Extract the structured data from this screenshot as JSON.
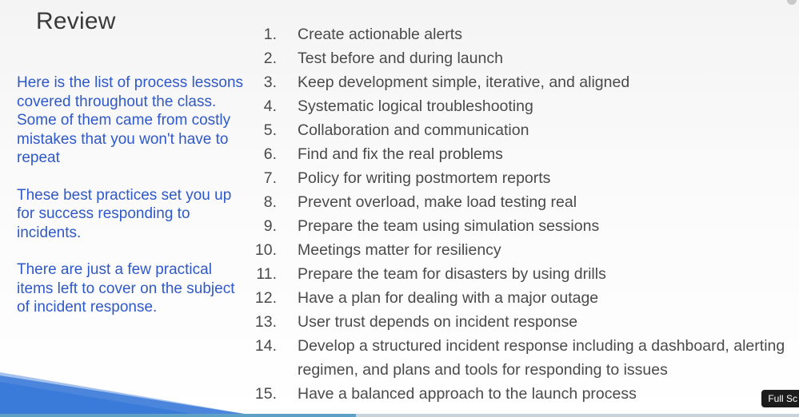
{
  "slide": {
    "title": "Review",
    "left_paragraphs": [
      "Here is the list of process lessons covered throughout the class. Some of them came from costly mistakes that you won't have to repeat",
      "These best practices set you up for success responding to incidents.",
      "There are just a few practical items left to cover on the subject of incident response."
    ],
    "list": [
      {
        "num": "1.",
        "text": "Create actionable alerts"
      },
      {
        "num": "2.",
        "text": "Test before and during launch"
      },
      {
        "num": "3.",
        "text": "Keep development simple, iterative, and aligned"
      },
      {
        "num": "4.",
        "text": "Systematic logical troubleshooting"
      },
      {
        "num": "5.",
        "text": "Collaboration and communication"
      },
      {
        "num": "6.",
        "text": "Find and fix the real problems"
      },
      {
        "num": "7.",
        "text": "Policy for writing postmortem reports"
      },
      {
        "num": "8.",
        "text": "Prevent overload, make load testing real"
      },
      {
        "num": "9.",
        "text": "Prepare the team using simulation sessions"
      },
      {
        "num": "10.",
        "text": "Meetings matter for resiliency"
      },
      {
        "num": "11.",
        "text": "Prepare the team for disasters by using drills"
      },
      {
        "num": "12.",
        "text": "Have a plan for dealing with a major outage"
      },
      {
        "num": "13.",
        "text": "User trust depends on incident response"
      },
      {
        "num": "14.",
        "text": "Develop a structured incident response including a dashboard, alerting regimen, and plans and tools for responding to issues"
      },
      {
        "num": "15.",
        "text": "Have a balanced approach to the launch process"
      }
    ]
  },
  "player": {
    "fullscreen_label": "Full Sc",
    "progress_fraction": 0.445,
    "colors": {
      "track": "#c9d3dc",
      "fill": "#5e9fc5",
      "accent_blue": "#2f59c8"
    }
  }
}
